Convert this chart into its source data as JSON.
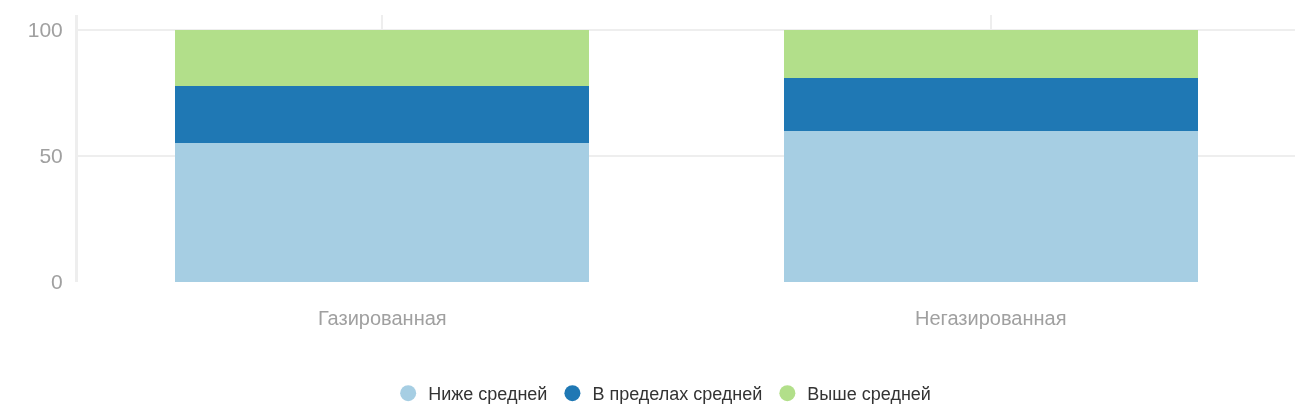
{
  "chart_data": {
    "type": "bar",
    "categories": [
      "Газированная",
      "Негазированная"
    ],
    "series": [
      {
        "name": "Ниже средней",
        "color": "#a6cee3",
        "values": [
          55,
          60
        ]
      },
      {
        "name": "В пределах средней",
        "color": "#1f78b4",
        "values": [
          23,
          21
        ]
      },
      {
        "name": "Выше средней",
        "color": "#b2df8a",
        "values": [
          22,
          19
        ]
      }
    ],
    "stacked": true,
    "ylim": [
      0,
      106
    ],
    "yticks": [
      0,
      50,
      100
    ],
    "grid": true,
    "legend": "bottom"
  }
}
